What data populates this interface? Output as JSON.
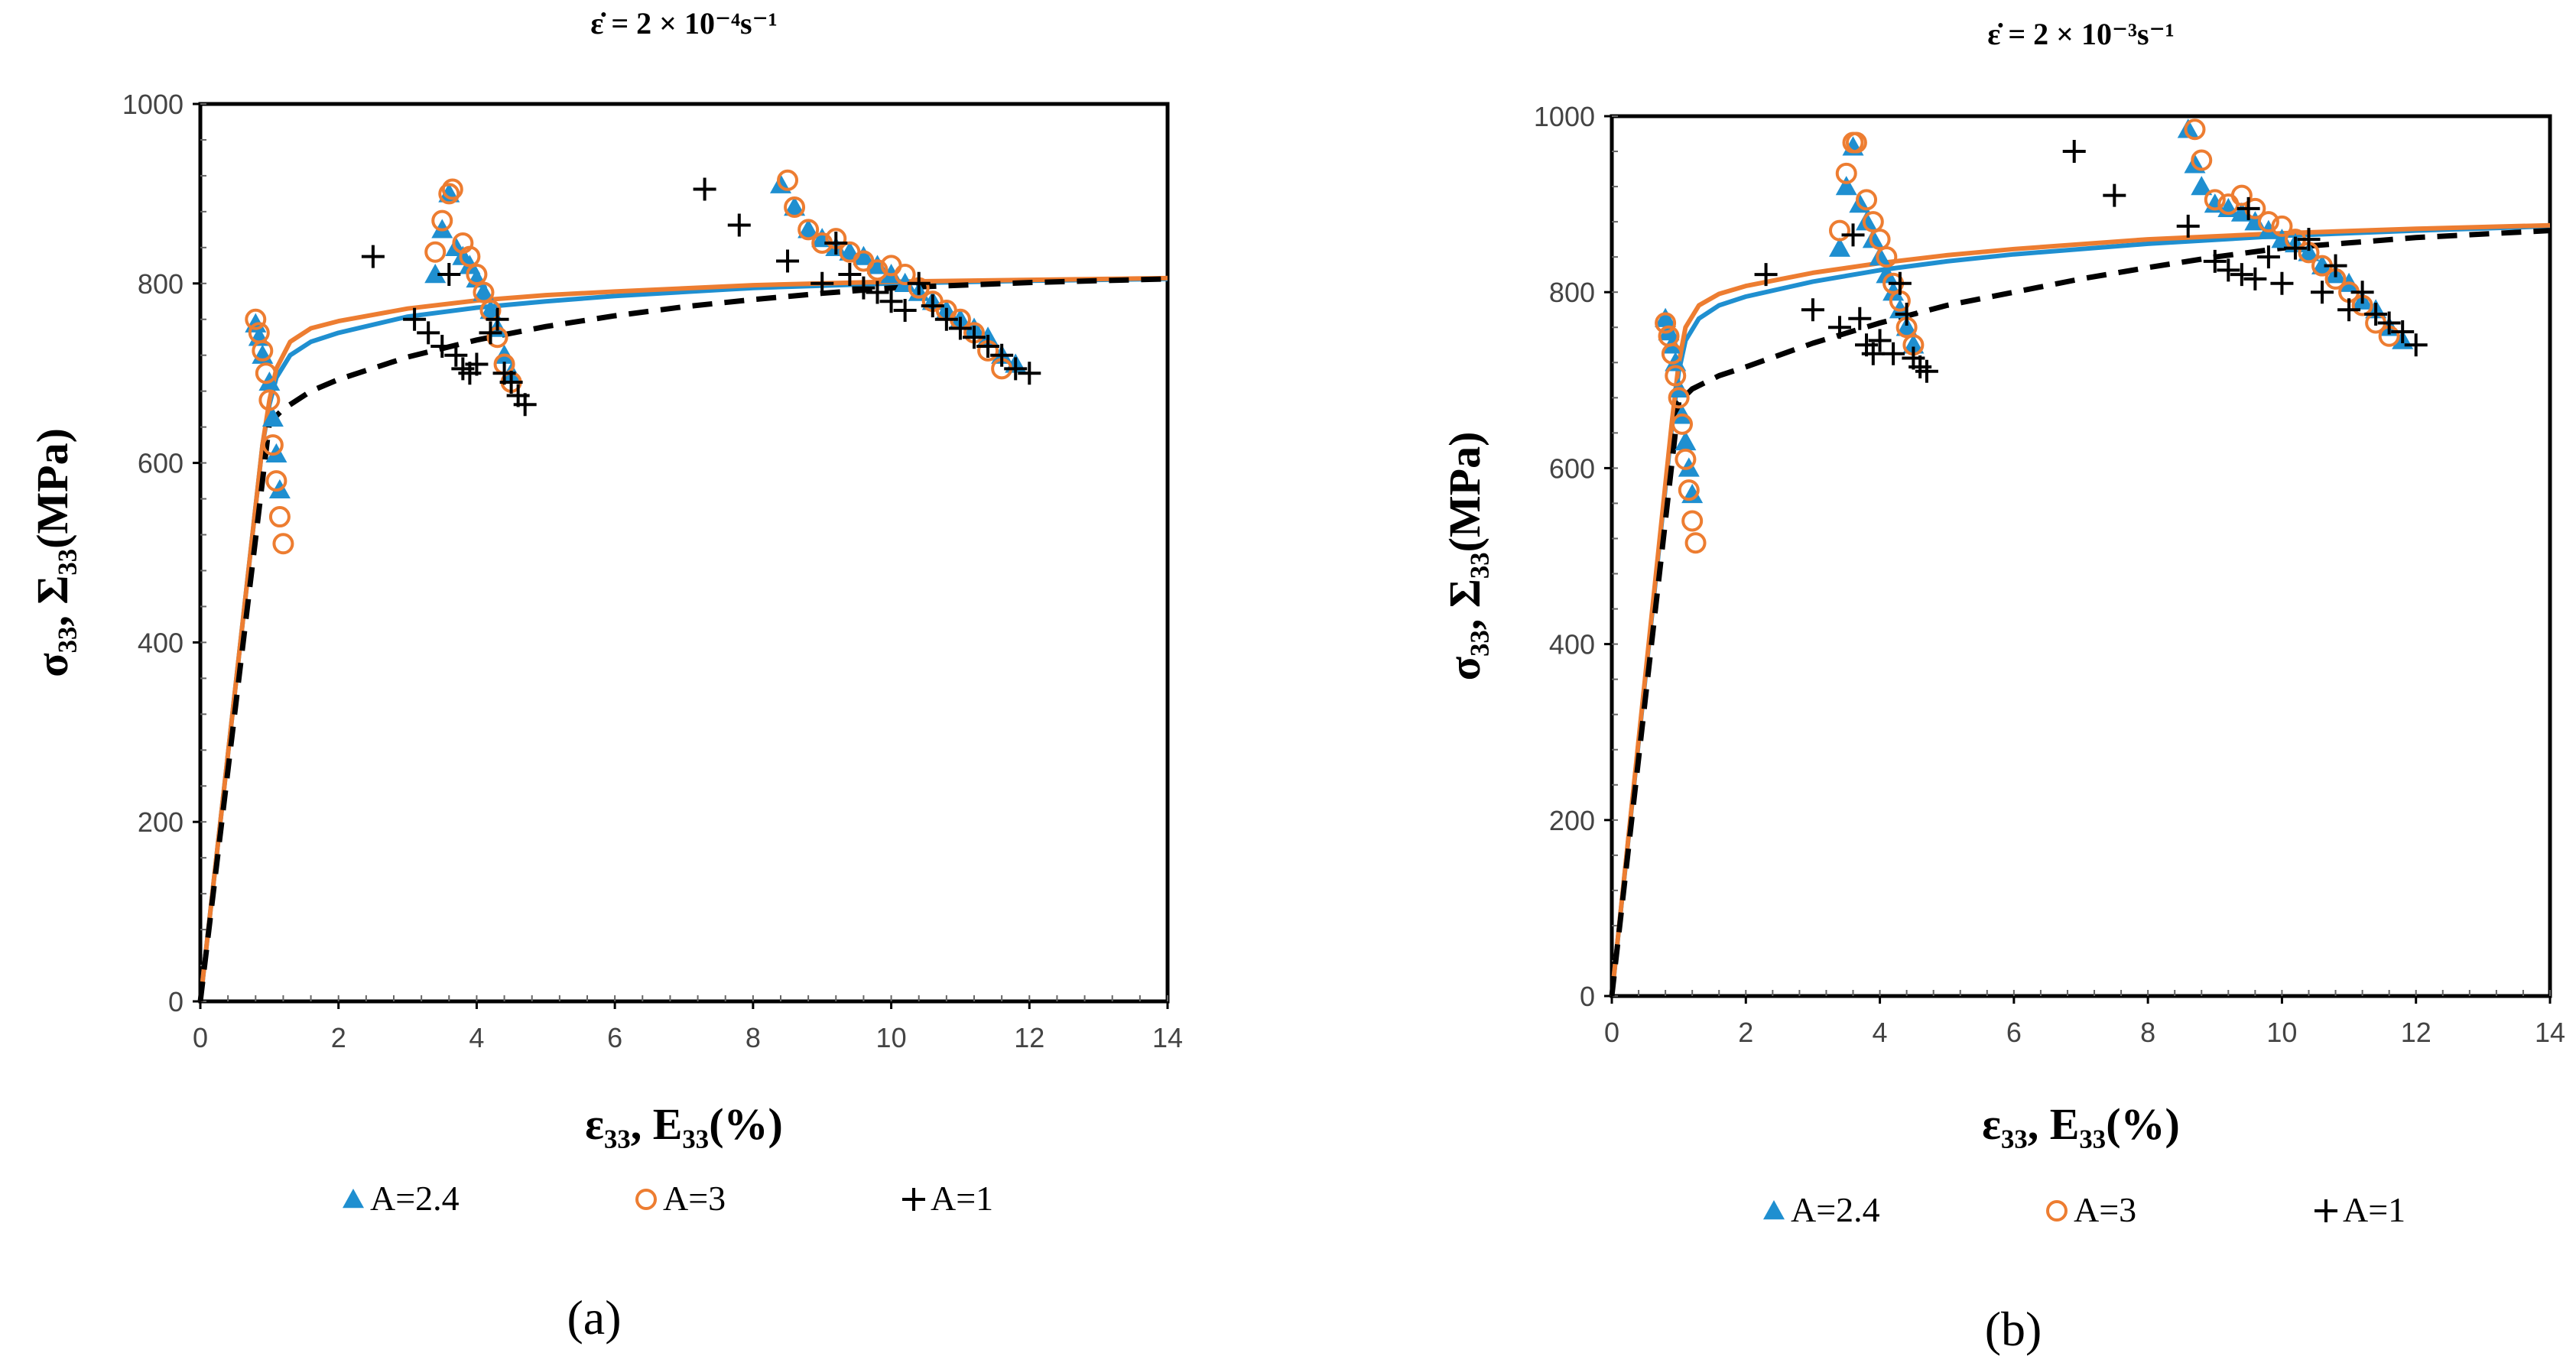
{
  "colors": {
    "blue": "#1f8fd0",
    "orange": "#ed7d31",
    "black": "#000000"
  },
  "chart_data": [
    {
      "panel": "(a)",
      "type": "scatter",
      "title": "ε̇ = 2 × 10⁻⁴s⁻¹",
      "xlabel": "ε₃₃, E₃₃(%)",
      "ylabel": "σ₃₃, Σ₃₃(MPa)",
      "xlim": [
        0,
        14
      ],
      "ylim": [
        0,
        1000
      ],
      "xticks": [
        0,
        2,
        4,
        6,
        8,
        10,
        12,
        14
      ],
      "yticks": [
        0,
        200,
        400,
        600,
        800,
        1000
      ],
      "legend": [
        "A=2.4",
        "A=3",
        "A=1"
      ],
      "series": [
        {
          "name": "A=2.4",
          "marker": "triangle",
          "color": "#1f8fd0",
          "x": [
            0.8,
            0.85,
            0.9,
            1.0,
            1.05,
            1.1,
            1.15,
            3.4,
            3.5,
            3.6,
            3.7,
            3.8,
            3.9,
            4.0,
            4.1,
            4.2,
            4.3,
            4.4,
            4.5,
            8.4,
            8.6,
            8.8,
            9.0,
            9.2,
            9.4,
            9.6,
            9.8,
            10.0,
            10.2,
            10.4,
            10.6,
            10.8,
            11.0,
            11.2,
            11.4,
            11.6,
            11.8
          ],
          "y": [
            755,
            740,
            720,
            690,
            650,
            610,
            570,
            810,
            860,
            900,
            840,
            830,
            820,
            805,
            790,
            770,
            750,
            720,
            700,
            910,
            885,
            860,
            850,
            840,
            835,
            830,
            820,
            810,
            800,
            790,
            780,
            770,
            760,
            750,
            740,
            720,
            710
          ]
        },
        {
          "name": "A=3",
          "marker": "circle",
          "color": "#ed7d31",
          "x": [
            0.8,
            0.85,
            0.9,
            0.95,
            1.0,
            1.05,
            1.1,
            1.15,
            1.2,
            3.4,
            3.5,
            3.6,
            3.65,
            3.8,
            3.9,
            4.0,
            4.1,
            4.2,
            4.3,
            4.4,
            4.5,
            8.5,
            8.6,
            8.8,
            9.0,
            9.2,
            9.4,
            9.6,
            9.8,
            10.0,
            10.2,
            10.4,
            10.6,
            10.8,
            11.0,
            11.2,
            11.4,
            11.6
          ],
          "y": [
            760,
            745,
            725,
            700,
            670,
            620,
            580,
            540,
            510,
            835,
            870,
            900,
            905,
            845,
            830,
            810,
            790,
            770,
            740,
            710,
            690,
            915,
            885,
            860,
            845,
            850,
            835,
            825,
            815,
            820,
            810,
            795,
            780,
            770,
            760,
            745,
            725,
            705
          ]
        },
        {
          "name": "A=1",
          "marker": "plus",
          "color": "#000000",
          "x": [
            2.5,
            3.1,
            3.3,
            3.5,
            3.6,
            3.7,
            3.8,
            3.9,
            4.0,
            4.2,
            4.3,
            4.4,
            4.5,
            4.6,
            4.7,
            7.3,
            7.8,
            8.5,
            9.0,
            9.2,
            9.4,
            9.6,
            9.8,
            10.0,
            10.2,
            10.4,
            10.6,
            10.8,
            11.0,
            11.2,
            11.4,
            11.6,
            11.8,
            12.0
          ],
          "y": [
            830,
            760,
            745,
            730,
            810,
            720,
            705,
            700,
            710,
            745,
            760,
            700,
            690,
            675,
            665,
            905,
            865,
            825,
            800,
            845,
            810,
            795,
            790,
            780,
            770,
            800,
            775,
            760,
            750,
            740,
            730,
            720,
            705,
            700
          ]
        }
      ],
      "lines": [
        {
          "name": "A=2.4",
          "style": "solid",
          "color": "#1f8fd0",
          "x": [
            0,
            0.9,
            1.0,
            1.1,
            1.3,
            1.6,
            2,
            3,
            4,
            5,
            6,
            8,
            10,
            12,
            14
          ],
          "y": [
            0,
            620,
            665,
            695,
            720,
            735,
            745,
            763,
            773,
            780,
            786,
            795,
            800,
            803,
            805
          ]
        },
        {
          "name": "A=3",
          "style": "solid",
          "color": "#ed7d31",
          "x": [
            0,
            0.9,
            1.0,
            1.1,
            1.3,
            1.6,
            2,
            3,
            4,
            5,
            6,
            8,
            10,
            12,
            14
          ],
          "y": [
            0,
            620,
            670,
            705,
            735,
            750,
            758,
            772,
            781,
            787,
            791,
            798,
            802,
            804,
            806
          ]
        },
        {
          "name": "A=1",
          "style": "dashed",
          "color": "#000000",
          "x": [
            0,
            1.0,
            1.2,
            1.6,
            2,
            3,
            4,
            5,
            6,
            7,
            8,
            9,
            10,
            12,
            14
          ],
          "y": [
            0,
            645,
            660,
            680,
            693,
            718,
            737,
            752,
            764,
            774,
            782,
            789,
            795,
            801,
            805
          ]
        }
      ]
    },
    {
      "panel": "(b)",
      "type": "scatter",
      "title": "ε̇ = 2 × 10⁻³s⁻¹",
      "xlabel": "ε₃₃, E₃₃(%)",
      "ylabel": "σ₃₃, Σ₃₃(MPa)",
      "xlim": [
        0,
        14
      ],
      "ylim": [
        0,
        1000
      ],
      "xticks": [
        0,
        2,
        4,
        6,
        8,
        10,
        12,
        14
      ],
      "yticks": [
        0,
        200,
        400,
        600,
        800,
        1000
      ],
      "legend": [
        "A=2.4",
        "A=3",
        "A=1"
      ],
      "series": [
        {
          "name": "A=2.4",
          "marker": "triangle",
          "color": "#1f8fd0",
          "x": [
            0.8,
            0.85,
            0.9,
            0.95,
            1.0,
            1.05,
            1.1,
            1.15,
            1.2,
            3.4,
            3.5,
            3.6,
            3.7,
            3.8,
            3.9,
            4.0,
            4.1,
            4.2,
            4.3,
            4.4,
            4.5,
            8.6,
            8.7,
            8.8,
            9.0,
            9.2,
            9.4,
            9.6,
            9.8,
            10.0,
            10.2,
            10.4,
            10.6,
            10.8,
            11.0,
            11.2,
            11.4,
            11.6,
            11.8
          ],
          "y": [
            770,
            755,
            740,
            720,
            690,
            660,
            630,
            600,
            570,
            850,
            920,
            965,
            900,
            880,
            860,
            840,
            820,
            800,
            780,
            760,
            740,
            985,
            945,
            920,
            900,
            895,
            890,
            880,
            870,
            860,
            855,
            845,
            830,
            820,
            810,
            790,
            780,
            760,
            745
          ]
        },
        {
          "name": "A=3",
          "marker": "circle",
          "color": "#ed7d31",
          "x": [
            0.8,
            0.85,
            0.9,
            0.95,
            1.0,
            1.05,
            1.1,
            1.15,
            1.2,
            1.25,
            3.4,
            3.5,
            3.6,
            3.65,
            3.8,
            3.9,
            4.0,
            4.1,
            4.2,
            4.3,
            4.4,
            4.5,
            8.7,
            8.8,
            9.0,
            9.2,
            9.4,
            9.6,
            9.8,
            10.0,
            10.2,
            10.4,
            10.6,
            10.8,
            11.0,
            11.2,
            11.4,
            11.6
          ],
          "y": [
            765,
            750,
            730,
            705,
            680,
            650,
            610,
            575,
            540,
            515,
            870,
            935,
            970,
            970,
            905,
            880,
            860,
            840,
            810,
            790,
            760,
            740,
            985,
            950,
            905,
            900,
            910,
            895,
            880,
            875,
            860,
            845,
            830,
            815,
            800,
            785,
            765,
            750
          ]
        },
        {
          "name": "A=1",
          "marker": "plus",
          "color": "#000000",
          "x": [
            2.3,
            3.0,
            3.4,
            3.6,
            3.7,
            3.8,
            3.9,
            4.0,
            4.2,
            4.3,
            4.4,
            4.5,
            4.6,
            4.7,
            6.9,
            7.5,
            8.6,
            9.0,
            9.2,
            9.4,
            9.5,
            9.6,
            9.8,
            10.0,
            10.2,
            10.4,
            10.6,
            10.8,
            11.0,
            11.2,
            11.4,
            11.6,
            11.8,
            12.0
          ],
          "y": [
            820,
            780,
            760,
            865,
            770,
            740,
            730,
            745,
            730,
            810,
            775,
            725,
            715,
            710,
            960,
            910,
            875,
            835,
            825,
            820,
            895,
            815,
            840,
            810,
            850,
            860,
            800,
            830,
            780,
            800,
            775,
            765,
            755,
            740
          ]
        }
      ],
      "lines": [
        {
          "name": "A=2.4",
          "style": "solid",
          "color": "#1f8fd0",
          "x": [
            0,
            0.9,
            1.0,
            1.1,
            1.3,
            1.6,
            2,
            3,
            4,
            5,
            6,
            8,
            10,
            12,
            14
          ],
          "y": [
            0,
            650,
            710,
            745,
            770,
            785,
            795,
            812,
            825,
            835,
            843,
            855,
            864,
            870,
            875
          ]
        },
        {
          "name": "A=3",
          "style": "solid",
          "color": "#ed7d31",
          "x": [
            0,
            0.9,
            1.0,
            1.1,
            1.3,
            1.6,
            2,
            3,
            4,
            5,
            6,
            8,
            10,
            12,
            14
          ],
          "y": [
            0,
            655,
            720,
            760,
            785,
            798,
            807,
            822,
            833,
            842,
            849,
            860,
            867,
            872,
            876
          ]
        },
        {
          "name": "A=1",
          "style": "dashed",
          "color": "#000000",
          "x": [
            0,
            1.0,
            1.2,
            1.6,
            2,
            3,
            4,
            5,
            6,
            7,
            8,
            9,
            10,
            12,
            14
          ],
          "y": [
            0,
            675,
            690,
            705,
            715,
            742,
            765,
            785,
            800,
            815,
            828,
            840,
            850,
            862,
            870
          ]
        }
      ]
    }
  ]
}
